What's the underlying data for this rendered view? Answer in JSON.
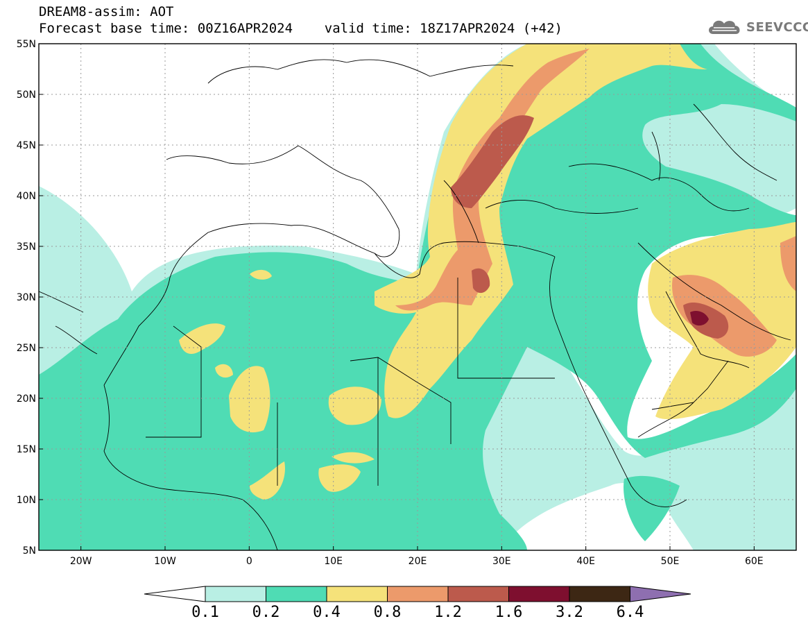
{
  "header": {
    "line1": "DREAM8-assim: AOT",
    "line2": "Forecast base time: 00Z16APR2024    valid time: 18Z17APR2024 (+42)"
  },
  "logo": {
    "text": "SEEVCCC",
    "icon": "cloud-icon"
  },
  "axes": {
    "lat_labels": [
      "55N",
      "50N",
      "45N",
      "40N",
      "35N",
      "30N",
      "25N",
      "20N",
      "15N",
      "10N",
      "5N"
    ],
    "lon_labels": [
      "20W",
      "10W",
      "0",
      "10E",
      "20E",
      "30E",
      "40E",
      "50E",
      "60E"
    ]
  },
  "colorbar": {
    "labels": [
      "0.1",
      "0.2",
      "0.4",
      "0.8",
      "1.2",
      "1.6",
      "3.2",
      "6.4"
    ],
    "colors": [
      "#b9efe4",
      "#4fdcb4",
      "#f5e27a",
      "#ec9a6b",
      "#bc5a4c",
      "#7e0f2f",
      "#3d2714",
      "#8e6fb0"
    ]
  },
  "map_colors": {
    "c01": "#b9efe4",
    "c02": "#4fdcb4",
    "c04": "#f5e27a",
    "c08": "#ec9a6b",
    "c12": "#bc5a4c",
    "c16": "#7e0f2f"
  }
}
